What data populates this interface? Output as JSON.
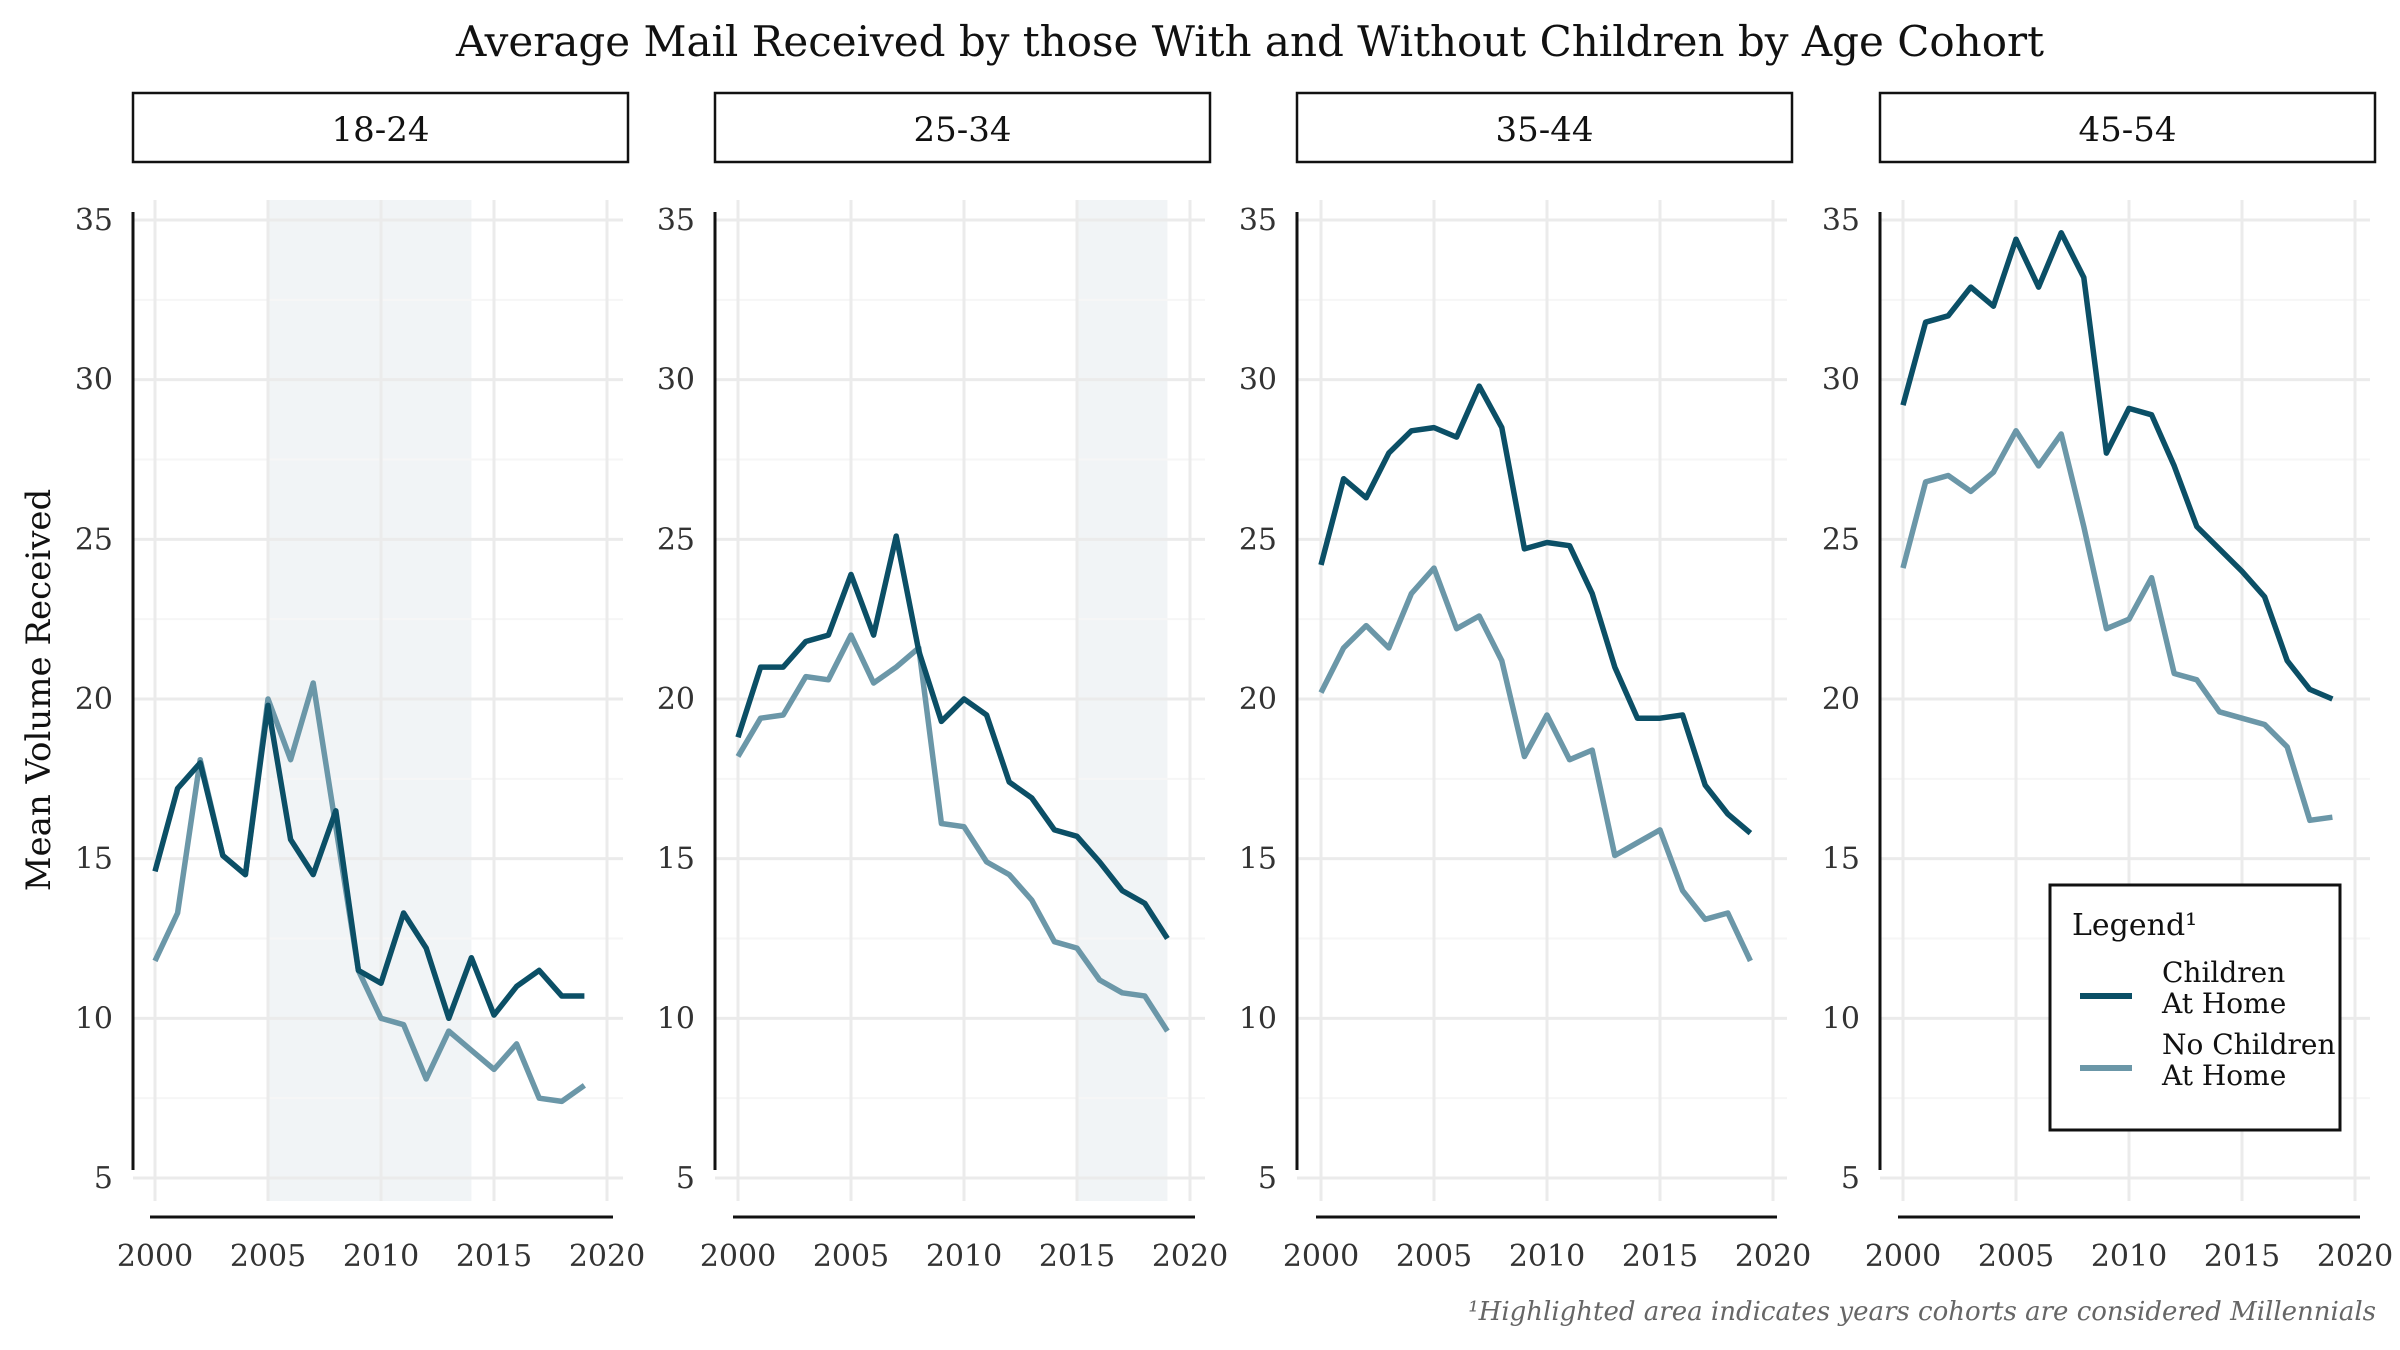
{
  "chart_data": {
    "type": "line",
    "title": "Average Mail Received by those With and Without Children by Age Cohort",
    "ylabel": "Mean Volume Received",
    "xlabel": "",
    "xlim": [
      1999,
      2021
    ],
    "ylim": [
      5,
      35
    ],
    "x_ticks": [
      2000,
      2005,
      2010,
      2015,
      2020
    ],
    "x_tick_labels": [
      "2000",
      "2005",
      "2010",
      "2015",
      "2020"
    ],
    "y_ticks": [
      5,
      10,
      15,
      20,
      25,
      30,
      35
    ],
    "y_tick_labels": [
      "5",
      "10",
      "15",
      "20",
      "25",
      "30",
      "35"
    ],
    "grid": true,
    "legend": {
      "title": "Legend¹",
      "placement": "bottom-right of last panel",
      "entries": [
        {
          "line1": "Children",
          "line2": "At Home",
          "color": "#0b4f66"
        },
        {
          "line1": "No Children",
          "line2": "At Home",
          "color": "#6b97a8"
        }
      ]
    },
    "caption": "¹Highlighted area indicates years cohorts are considered Millennials",
    "colors": {
      "children": "#0b4f66",
      "no_children": "#6b97a8",
      "highlight": "#f1f4f6"
    },
    "panels": [
      {
        "label": "18-24",
        "highlight": [
          2005,
          2014
        ],
        "x": [
          2000,
          2001,
          2002,
          2003,
          2004,
          2005,
          2006,
          2007,
          2008,
          2009,
          2010,
          2011,
          2012,
          2013,
          2014,
          2015,
          2016,
          2017,
          2018,
          2019
        ],
        "series": [
          {
            "key": "children",
            "values": [
              14.6,
              17.2,
              18.0,
              15.1,
              14.5,
              19.8,
              15.6,
              14.5,
              16.5,
              11.5,
              11.1,
              13.3,
              12.2,
              10.0,
              11.9,
              10.1,
              11.0,
              11.5,
              10.7,
              10.7
            ]
          },
          {
            "key": "no_children",
            "values": [
              11.8,
              13.3,
              18.1,
              15.1,
              14.5,
              20.0,
              18.1,
              20.5,
              16.0,
              11.5,
              10.0,
              9.8,
              8.1,
              9.6,
              9.0,
              8.4,
              9.2,
              7.5,
              7.4,
              7.9
            ]
          }
        ]
      },
      {
        "label": "25-34",
        "highlight": [
          2015,
          2019
        ],
        "x": [
          2000,
          2001,
          2002,
          2003,
          2004,
          2005,
          2006,
          2007,
          2008,
          2009,
          2010,
          2011,
          2012,
          2013,
          2014,
          2015,
          2016,
          2017,
          2018,
          2019
        ],
        "series": [
          {
            "key": "children",
            "values": [
              18.8,
              21.0,
              21.0,
              21.8,
              22.0,
              23.9,
              22.0,
              25.1,
              21.5,
              19.3,
              20.0,
              19.5,
              17.4,
              16.9,
              15.9,
              15.7,
              14.9,
              14.0,
              13.6,
              12.5
            ]
          },
          {
            "key": "no_children",
            "values": [
              18.2,
              19.4,
              19.5,
              20.7,
              20.6,
              22.0,
              20.5,
              21.0,
              21.6,
              16.1,
              16.0,
              14.9,
              14.5,
              13.7,
              12.4,
              12.2,
              11.2,
              10.8,
              10.7,
              9.6
            ]
          }
        ]
      },
      {
        "label": "35-44",
        "highlight": null,
        "x": [
          2000,
          2001,
          2002,
          2003,
          2004,
          2005,
          2006,
          2007,
          2008,
          2009,
          2010,
          2011,
          2012,
          2013,
          2014,
          2015,
          2016,
          2017,
          2018,
          2019
        ],
        "series": [
          {
            "key": "children",
            "values": [
              24.2,
              26.9,
              26.3,
              27.7,
              28.4,
              28.5,
              28.2,
              29.8,
              28.5,
              24.7,
              24.9,
              24.8,
              23.3,
              21.0,
              19.4,
              19.4,
              19.5,
              17.3,
              16.4,
              15.8
            ]
          },
          {
            "key": "no_children",
            "values": [
              20.2,
              21.6,
              22.3,
              21.6,
              23.3,
              24.1,
              22.2,
              22.6,
              21.2,
              18.2,
              19.5,
              18.1,
              18.4,
              15.1,
              15.5,
              15.9,
              14.0,
              13.1,
              13.3,
              11.8
            ]
          }
        ]
      },
      {
        "label": "45-54",
        "highlight": null,
        "x": [
          2000,
          2001,
          2002,
          2003,
          2004,
          2005,
          2006,
          2007,
          2008,
          2009,
          2010,
          2011,
          2012,
          2013,
          2014,
          2015,
          2016,
          2017,
          2018,
          2019
        ],
        "series": [
          {
            "key": "children",
            "values": [
              29.2,
              31.8,
              32.0,
              32.9,
              32.3,
              34.4,
              32.9,
              34.6,
              33.2,
              27.7,
              29.1,
              28.9,
              27.3,
              25.4,
              24.7,
              24.0,
              23.2,
              21.2,
              20.3,
              20.0
            ]
          },
          {
            "key": "no_children",
            "values": [
              24.1,
              26.8,
              27.0,
              26.5,
              27.1,
              28.4,
              27.3,
              28.3,
              25.4,
              22.2,
              22.5,
              23.8,
              20.8,
              20.6,
              19.6,
              19.4,
              19.2,
              18.5,
              16.2,
              16.3
            ]
          }
        ]
      }
    ]
  }
}
